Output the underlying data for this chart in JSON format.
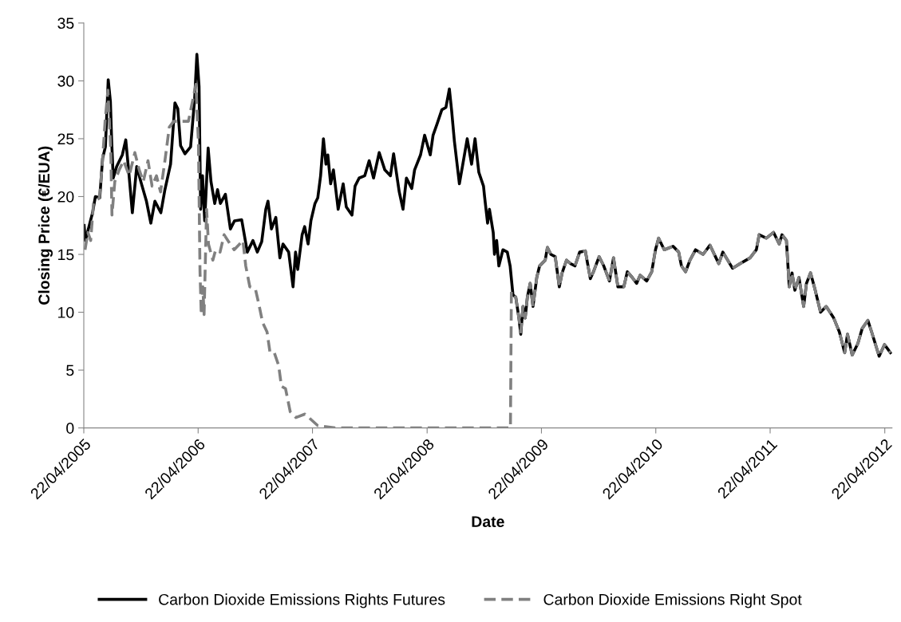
{
  "chart_data": {
    "type": "line",
    "xlabel": "Date",
    "ylabel": "Closing Price (€/EUA)",
    "xlim": [
      "2005-04-22",
      "2012-05-15"
    ],
    "xticks": [
      {
        "value": "2005-04-22",
        "label": "22/04/2005"
      },
      {
        "value": "2006-04-22",
        "label": "22/04/2006"
      },
      {
        "value": "2007-04-22",
        "label": "22/04/2007"
      },
      {
        "value": "2008-04-22",
        "label": "22/04/2008"
      },
      {
        "value": "2009-04-22",
        "label": "22/04/2009"
      },
      {
        "value": "2010-04-22",
        "label": "22/04/2010"
      },
      {
        "value": "2011-04-22",
        "label": "22/04/2011"
      },
      {
        "value": "2012-04-22",
        "label": "22/04/2012"
      }
    ],
    "ylim": [
      0,
      35
    ],
    "yticks": [
      0,
      5,
      10,
      15,
      20,
      25,
      30,
      35
    ],
    "grid": false,
    "legend": "bottom",
    "series": [
      {
        "name": "Carbon Dioxide Emissions Rights Futures",
        "color": "#000000",
        "line_style": "solid",
        "x": [
          "2005-04-23",
          "2005-04-27",
          "2005-05-20",
          "2005-05-29",
          "2005-06-12",
          "2005-06-21",
          "2005-06-30",
          "2005-07-09",
          "2005-07-16",
          "2005-07-20",
          "2005-07-25",
          "2005-08-05",
          "2005-08-23",
          "2005-09-03",
          "2005-09-12",
          "2005-09-24",
          "2005-10-08",
          "2005-10-21",
          "2005-11-08",
          "2005-11-22",
          "2005-12-05",
          "2005-12-24",
          "2006-01-06",
          "2006-01-24",
          "2006-02-07",
          "2006-02-16",
          "2006-02-25",
          "2006-03-11",
          "2006-03-29",
          "2006-04-11",
          "2006-04-18",
          "2006-04-25",
          "2006-04-30",
          "2006-05-06",
          "2006-05-13",
          "2006-05-24",
          "2006-06-02",
          "2006-06-14",
          "2006-06-23",
          "2006-07-02",
          "2006-07-18",
          "2006-08-03",
          "2006-08-16",
          "2006-09-08",
          "2006-09-26",
          "2006-10-14",
          "2006-10-28",
          "2006-11-11",
          "2006-11-24",
          "2006-12-01",
          "2006-12-12",
          "2006-12-26",
          "2007-01-08",
          "2007-01-18",
          "2007-02-05",
          "2007-02-19",
          "2007-02-27",
          "2007-03-06",
          "2007-03-20",
          "2007-03-28",
          "2007-04-08",
          "2007-04-17",
          "2007-04-30",
          "2007-05-09",
          "2007-05-18",
          "2007-05-27",
          "2007-06-04",
          "2007-06-10",
          "2007-06-19",
          "2007-06-28",
          "2007-07-13",
          "2007-07-29",
          "2007-08-08",
          "2007-08-26",
          "2007-09-05",
          "2007-09-18",
          "2007-10-06",
          "2007-10-20",
          "2007-11-03",
          "2007-11-21",
          "2007-12-09",
          "2007-12-27",
          "2008-01-06",
          "2008-01-24",
          "2008-02-05",
          "2008-02-16",
          "2008-03-04",
          "2008-03-13",
          "2008-04-01",
          "2008-04-14",
          "2008-05-02",
          "2008-05-11",
          "2008-05-24",
          "2008-06-08",
          "2008-06-21",
          "2008-07-02",
          "2008-07-09",
          "2008-07-18",
          "2008-08-03",
          "2008-08-14",
          "2008-08-28",
          "2008-09-11",
          "2008-09-22",
          "2008-10-04",
          "2008-10-19",
          "2008-10-22",
          "2008-11-01",
          "2008-11-07",
          "2008-11-19",
          "2008-11-23",
          "2008-11-30",
          "2008-12-07",
          "2008-12-20",
          "2009-01-03",
          "2009-01-12",
          "2009-01-21",
          "2009-01-30",
          "2009-02-09",
          "2009-02-15",
          "2009-02-22",
          "2009-03-01",
          "2009-03-08",
          "2009-03-17",
          "2009-03-26",
          "2009-04-07",
          "2009-04-16",
          "2009-05-04",
          "2009-05-11",
          "2009-05-22",
          "2009-06-05",
          "2009-06-18",
          "2009-06-27",
          "2009-07-11",
          "2009-07-24",
          "2009-08-07",
          "2009-08-22",
          "2009-09-09",
          "2009-09-25",
          "2009-10-05",
          "2009-10-23",
          "2009-11-07",
          "2009-11-25",
          "2009-12-08",
          "2009-12-22",
          "2010-01-10",
          "2010-01-21",
          "2010-02-06",
          "2010-02-20",
          "2010-03-03",
          "2010-03-24",
          "2010-04-09",
          "2010-04-21",
          "2010-05-01",
          "2010-05-19",
          "2010-06-16",
          "2010-07-04",
          "2010-07-13",
          "2010-07-26",
          "2010-08-09",
          "2010-08-27",
          "2010-09-20",
          "2010-10-12",
          "2010-11-09",
          "2010-11-22",
          "2010-12-23",
          "2011-01-16",
          "2011-02-17",
          "2011-03-09",
          "2011-03-18",
          "2011-04-10",
          "2011-05-03",
          "2011-05-21",
          "2011-05-30",
          "2011-06-13",
          "2011-06-22",
          "2011-07-01",
          "2011-07-10",
          "2011-07-23",
          "2011-08-07",
          "2011-08-16",
          "2011-08-29",
          "2011-09-12",
          "2011-09-30",
          "2011-10-18",
          "2011-11-11",
          "2011-11-29",
          "2011-12-16",
          "2011-12-25",
          "2012-01-09",
          "2012-01-27",
          "2012-02-10",
          "2012-02-28",
          "2012-03-11",
          "2012-04-04",
          "2012-04-21",
          "2012-05-10"
        ],
        "values": [
          17.5,
          16.2,
          18.6,
          20.0,
          19.9,
          23.3,
          24.3,
          30.1,
          28.2,
          24.8,
          21.6,
          22.6,
          23.6,
          24.9,
          22.3,
          18.6,
          22.6,
          21.3,
          19.6,
          17.7,
          19.6,
          18.6,
          20.6,
          22.8,
          28.1,
          27.6,
          24.4,
          23.7,
          24.3,
          28.5,
          32.3,
          29.5,
          18.9,
          21.8,
          17.9,
          24.2,
          21.3,
          19.4,
          20.6,
          19.4,
          20.2,
          17.2,
          17.9,
          18.0,
          15.2,
          16.2,
          15.2,
          16.1,
          18.9,
          19.6,
          17.2,
          18.2,
          14.7,
          15.9,
          15.2,
          12.2,
          15.2,
          13.7,
          16.7,
          17.4,
          15.9,
          17.9,
          19.4,
          19.9,
          21.8,
          25.0,
          22.8,
          23.6,
          21.1,
          22.3,
          18.9,
          21.1,
          19.1,
          18.4,
          20.9,
          21.6,
          21.8,
          23.1,
          21.6,
          23.8,
          22.3,
          21.8,
          23.7,
          20.4,
          18.9,
          21.6,
          20.7,
          22.3,
          23.6,
          25.3,
          23.6,
          25.3,
          26.3,
          27.5,
          27.7,
          29.3,
          27.5,
          24.8,
          21.1,
          22.8,
          25.0,
          22.8,
          25.0,
          22.1,
          20.9,
          20.1,
          17.7,
          18.9,
          16.9,
          15.0,
          16.2,
          14.0,
          15.4,
          15.2,
          14.0,
          11.5,
          11.3,
          9.5,
          8.1,
          10.5,
          9.5,
          11.3,
          12.5,
          10.5,
          13.0,
          14.0,
          14.5,
          15.6,
          15.0,
          14.8,
          12.2,
          13.4,
          14.5,
          14.2,
          14.0,
          15.2,
          15.3,
          12.9,
          13.5,
          14.8,
          14.0,
          12.7,
          14.7,
          12.2,
          12.2,
          13.5,
          13.0,
          12.5,
          13.2,
          12.7,
          13.5,
          15.4,
          16.4,
          15.4,
          15.7,
          15.2,
          14.0,
          13.5,
          14.5,
          15.4,
          15.0,
          15.8,
          14.2,
          15.2,
          13.8,
          14.2,
          14.7,
          15.4,
          16.7,
          16.4,
          16.9,
          15.9,
          16.7,
          16.2,
          12.2,
          13.4,
          11.9,
          13.0,
          10.5,
          12.5,
          13.4,
          12.0,
          10.0,
          10.5,
          9.5,
          8.3,
          6.5,
          8.1,
          6.3,
          7.3,
          8.6,
          9.3,
          8.3,
          6.2,
          7.2,
          6.5
        ]
      },
      {
        "name": "Carbon Dioxide Emissions Right Spot",
        "color": "#808080",
        "line_style": "dashed",
        "x": [
          "2005-04-26",
          "2005-05-05",
          "2005-05-14",
          "2005-05-23",
          "2005-06-11",
          "2005-06-20",
          "2005-06-29",
          "2005-07-08",
          "2005-07-17",
          "2005-07-21",
          "2005-07-30",
          "2005-08-13",
          "2005-08-27",
          "2005-09-14",
          "2005-10-02",
          "2005-10-16",
          "2005-10-29",
          "2005-11-13",
          "2005-11-26",
          "2005-12-10",
          "2005-12-23",
          "2006-01-06",
          "2006-01-20",
          "2006-02-03",
          "2006-02-16",
          "2006-03-04",
          "2006-03-22",
          "2006-04-06",
          "2006-04-15",
          "2006-04-23",
          "2006-04-28",
          "2006-05-02",
          "2006-05-07",
          "2006-05-11",
          "2006-05-19",
          "2006-05-25",
          "2006-06-08",
          "2006-06-17",
          "2006-07-01",
          "2006-07-14",
          "2006-08-02",
          "2006-08-15",
          "2006-09-12",
          "2006-09-21",
          "2006-10-04",
          "2006-10-22",
          "2006-11-01",
          "2006-11-14",
          "2006-11-28",
          "2006-12-07",
          "2006-12-20",
          "2007-01-04",
          "2007-01-13",
          "2007-01-26",
          "2007-02-10",
          "2007-02-28",
          "2007-03-29",
          "2007-05-09",
          "2007-07-03",
          "2008-06-01",
          "2009-01-13",
          "2009-01-16",
          "2009-01-30",
          "2009-02-09",
          "2009-02-15",
          "2009-02-22",
          "2009-03-01",
          "2009-03-08",
          "2009-03-17",
          "2009-03-26",
          "2009-04-07",
          "2009-04-16",
          "2009-05-04",
          "2009-05-11",
          "2009-05-22",
          "2009-06-05",
          "2009-06-18",
          "2009-06-27",
          "2009-07-11",
          "2009-07-24",
          "2009-08-07",
          "2009-08-22",
          "2009-09-09",
          "2009-09-25",
          "2009-10-05",
          "2009-10-23",
          "2009-11-07",
          "2009-11-25",
          "2009-12-08",
          "2009-12-22",
          "2010-01-10",
          "2010-01-21",
          "2010-02-06",
          "2010-02-20",
          "2010-03-03",
          "2010-03-24",
          "2010-04-09",
          "2010-04-21",
          "2010-05-01",
          "2010-05-19",
          "2010-06-16",
          "2010-07-04",
          "2010-07-13",
          "2010-07-26",
          "2010-08-09",
          "2010-08-27",
          "2010-09-20",
          "2010-10-12",
          "2010-11-09",
          "2010-11-22",
          "2010-12-23",
          "2011-01-16",
          "2011-02-17",
          "2011-03-09",
          "2011-03-18",
          "2011-04-10",
          "2011-05-03",
          "2011-05-21",
          "2011-05-30",
          "2011-06-13",
          "2011-06-22",
          "2011-07-01",
          "2011-07-10",
          "2011-07-23",
          "2011-08-07",
          "2011-08-16",
          "2011-08-29",
          "2011-09-12",
          "2011-09-30",
          "2011-10-18",
          "2011-11-11",
          "2011-11-29",
          "2011-12-16",
          "2011-12-25",
          "2012-01-09",
          "2012-01-27",
          "2012-02-10",
          "2012-02-28",
          "2012-03-11",
          "2012-04-04",
          "2012-04-21",
          "2012-05-10"
        ],
        "values": [
          15.4,
          16.9,
          16.2,
          19.4,
          19.9,
          22.8,
          26.5,
          29.2,
          24.1,
          18.4,
          21.3,
          22.3,
          23.1,
          21.8,
          23.8,
          22.3,
          21.3,
          23.1,
          20.9,
          21.8,
          20.4,
          23.1,
          26.0,
          26.5,
          26.5,
          26.5,
          26.5,
          28.5,
          29.7,
          24.6,
          13.5,
          9.8,
          12.2,
          9.8,
          18.9,
          15.9,
          14.5,
          15.4,
          15.2,
          16.7,
          15.9,
          15.4,
          16.2,
          14.0,
          12.2,
          12.0,
          10.8,
          9.1,
          8.3,
          6.6,
          6.6,
          5.4,
          3.6,
          3.4,
          1.4,
          0.9,
          1.2,
          0.2,
          0,
          0,
          0,
          11.8,
          11.3,
          9.5,
          8.3,
          10.5,
          9.5,
          11.3,
          12.5,
          10.5,
          13.0,
          14.0,
          14.5,
          15.6,
          15.0,
          14.8,
          12.2,
          13.4,
          14.5,
          14.2,
          14.0,
          15.2,
          15.3,
          12.9,
          13.5,
          14.8,
          14.0,
          12.7,
          14.7,
          12.2,
          12.2,
          13.5,
          13.0,
          12.5,
          13.2,
          12.7,
          13.5,
          15.4,
          16.4,
          15.4,
          15.7,
          15.2,
          14.0,
          13.5,
          14.5,
          15.4,
          15.0,
          15.8,
          14.2,
          15.2,
          13.8,
          14.2,
          14.7,
          15.4,
          16.7,
          16.4,
          16.9,
          15.9,
          16.7,
          16.2,
          12.2,
          13.4,
          11.9,
          13.0,
          10.5,
          12.5,
          13.4,
          12.0,
          10.0,
          10.5,
          9.5,
          8.3,
          6.5,
          8.1,
          6.3,
          7.3,
          8.6,
          9.3,
          8.3,
          6.2,
          7.2,
          6.5
        ]
      }
    ]
  }
}
